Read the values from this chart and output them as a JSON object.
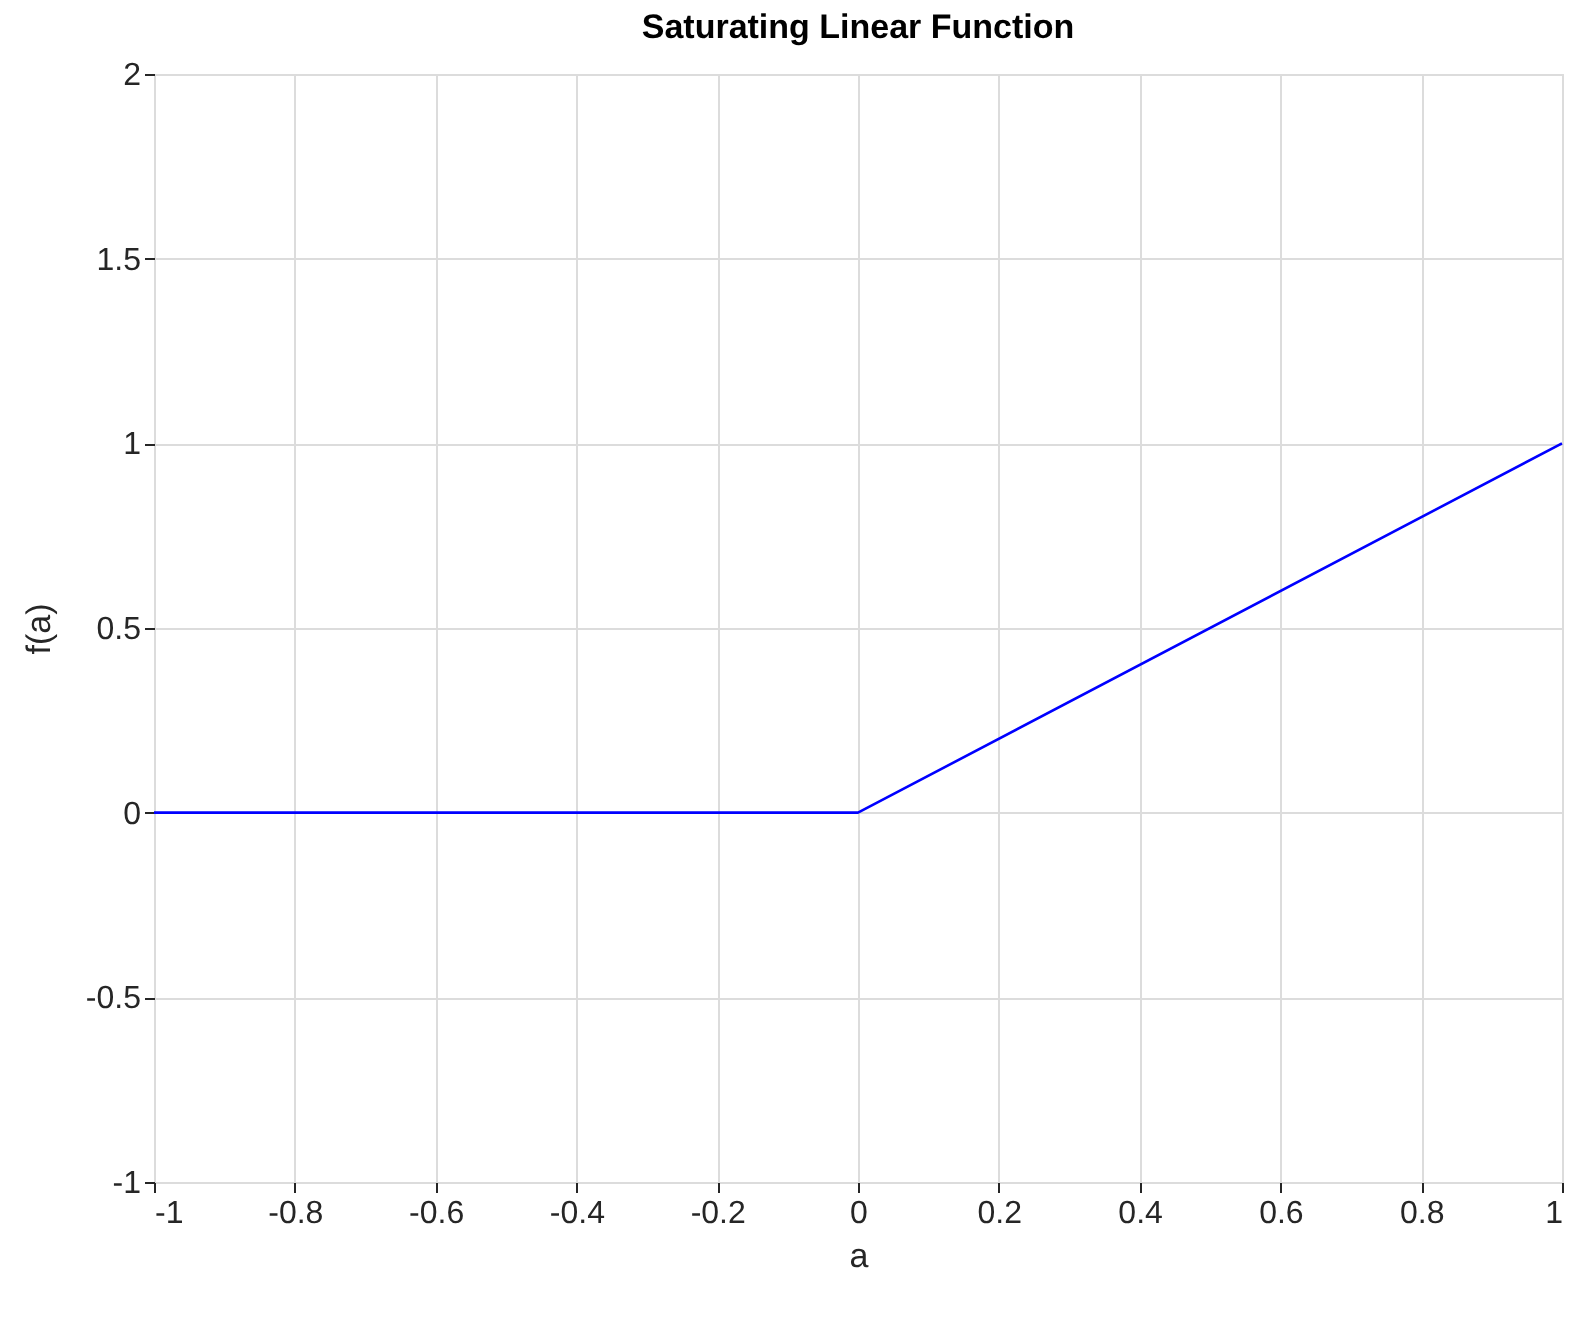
{
  "chart_data": {
    "type": "line",
    "title": "Saturating Linear Function",
    "xlabel": "a",
    "ylabel": "f(a)",
    "x": [
      -1,
      0,
      1
    ],
    "series": [
      {
        "color": "#0000ff",
        "values": [
          0,
          0,
          1
        ]
      }
    ],
    "xlim": [
      -1,
      1
    ],
    "xticks": [
      -1,
      -0.8,
      -0.6,
      -0.4,
      -0.2,
      0,
      0.2,
      0.4,
      0.6,
      0.8,
      1
    ],
    "ylim": [
      -1,
      2
    ],
    "yticks": [
      -1,
      -0.5,
      0,
      0.5,
      1,
      1.5,
      2
    ],
    "grid": true,
    "marker": "none",
    "line_style": "solid"
  }
}
